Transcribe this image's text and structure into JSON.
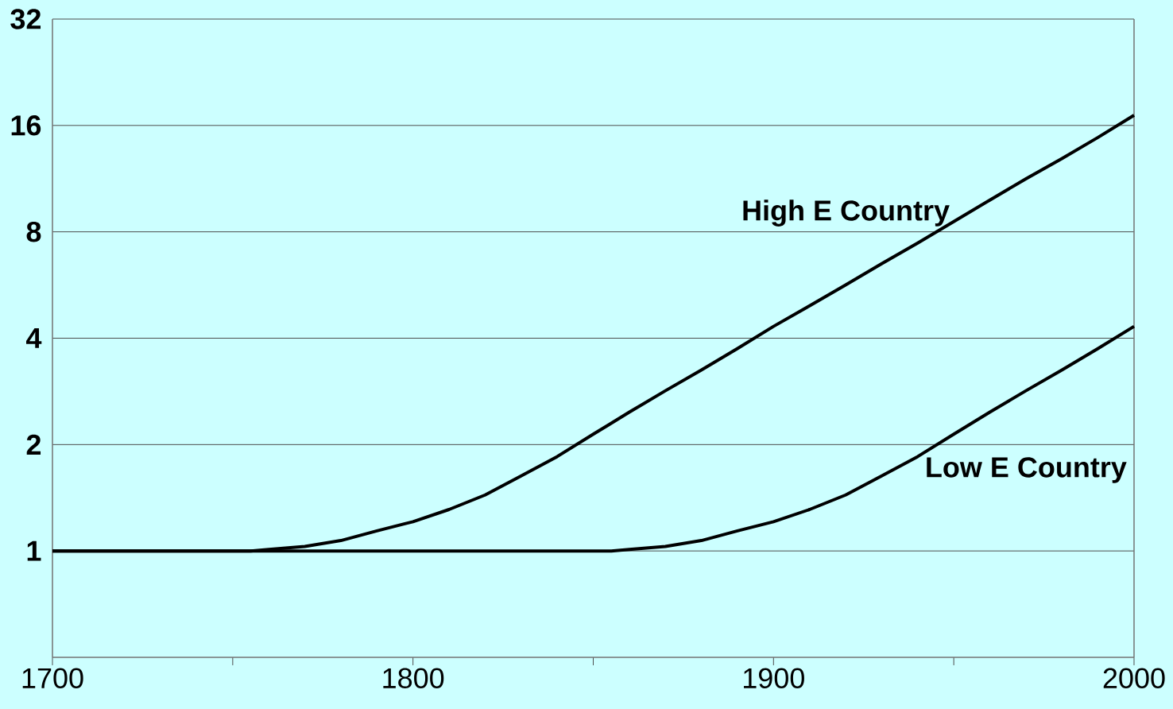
{
  "chart_data": {
    "type": "line",
    "log": "y",
    "grid": "y",
    "marker": "none",
    "line_style": "solid",
    "xlim": [
      1700,
      2000
    ],
    "ylim": [
      0.5,
      32
    ],
    "xticks": [
      1700,
      {
        "value": 1750,
        "label": null
      },
      1800,
      {
        "value": 1850,
        "label": null
      },
      1900,
      {
        "value": 1950,
        "label": null
      },
      2000
    ],
    "yticks": [
      1,
      2,
      4,
      8,
      16,
      32
    ],
    "series": [
      {
        "name": "High E Country",
        "color": "#000000",
        "x": [
          1700,
          1755,
          1760,
          1770,
          1780,
          1790,
          1800,
          1810,
          1820,
          1830,
          1840,
          1850,
          1860,
          1870,
          1880,
          1890,
          1900,
          1910,
          1920,
          1930,
          1940,
          1950,
          1960,
          1970,
          1980,
          1990,
          2000
        ],
        "values": [
          1,
          1,
          1.01,
          1.03,
          1.07,
          1.14,
          1.21,
          1.31,
          1.44,
          1.63,
          1.85,
          2.14,
          2.47,
          2.84,
          3.25,
          3.74,
          4.32,
          4.94,
          5.66,
          6.5,
          7.44,
          8.55,
          9.84,
          11.3,
          12.9,
          14.8,
          17.1
        ]
      },
      {
        "name": "Low E Country",
        "color": "#000000",
        "x": [
          1700,
          1855,
          1860,
          1870,
          1880,
          1890,
          1900,
          1910,
          1920,
          1930,
          1940,
          1950,
          1960,
          1970,
          1980,
          1990,
          2000
        ],
        "values": [
          1,
          1,
          1.01,
          1.03,
          1.07,
          1.14,
          1.21,
          1.31,
          1.44,
          1.63,
          1.85,
          2.14,
          2.47,
          2.84,
          3.25,
          3.74,
          4.32
        ]
      }
    ]
  }
}
